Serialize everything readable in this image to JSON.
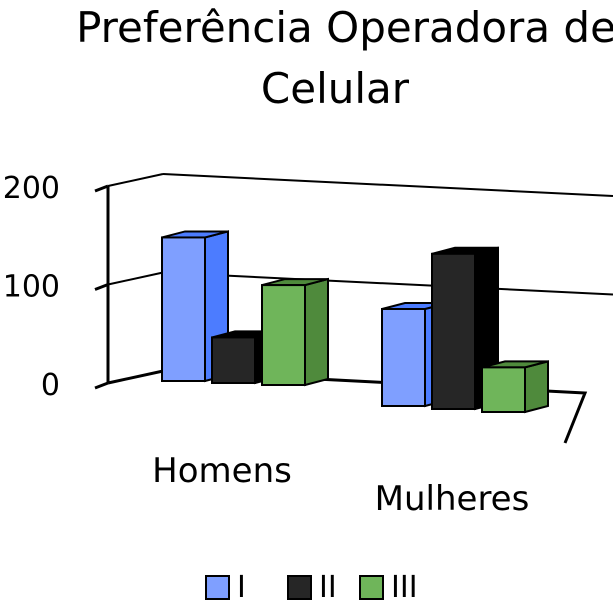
{
  "chart_data": {
    "type": "bar",
    "title_lines": [
      "Preferência Operadora de",
      "Celular"
    ],
    "categories": [
      "Homens",
      "Mulheres"
    ],
    "series": [
      {
        "name": "I",
        "values": [
          148,
          100
        ],
        "color": "#7f9fff",
        "side_color": "#4c7cff"
      },
      {
        "name": "II",
        "values": [
          47,
          160
        ],
        "color": "#262626",
        "side_color": "#000000"
      },
      {
        "name": "III",
        "values": [
          103,
          46
        ],
        "color": "#6fb55a",
        "side_color": "#4f8a3c"
      }
    ],
    "y_ticks": [
      0,
      100,
      200
    ],
    "ylim": [
      0,
      200
    ],
    "legend_position": "bottom",
    "grid": true
  }
}
